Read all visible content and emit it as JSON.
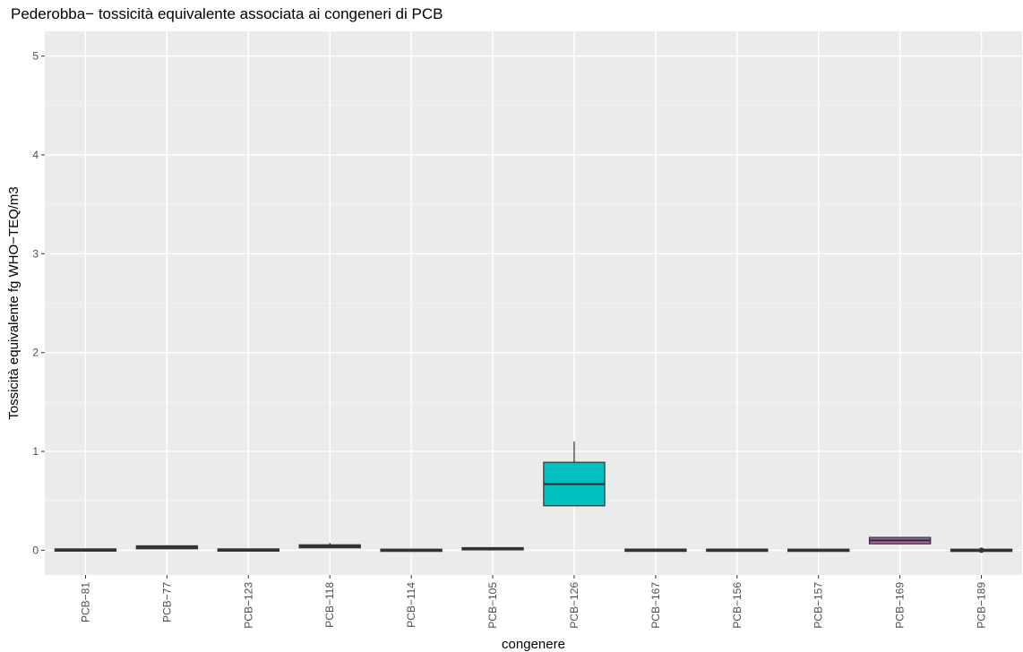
{
  "chart_data": {
    "type": "boxplot",
    "title": "Pederobba− tossicità equivalente associata ai congeneri di PCB",
    "xlabel": "congenere",
    "ylabel": "Tossicità equivalente fg WHO−TEQ/m3",
    "ylim": [
      -0.25,
      5.25
    ],
    "y_ticks": [
      0,
      1,
      2,
      3,
      4,
      5
    ],
    "grid": true,
    "colors": {
      "panel_background": "#ebebeb",
      "grid_major": "#ffffff",
      "grid_minor": "#f5f5f5",
      "box_outline": "#333333",
      "default_fill": "#333333",
      "PCB−126": "#00c0c0",
      "PCB−169": "#b05fb0"
    },
    "categories": [
      "PCB−81",
      "PCB−77",
      "PCB−123",
      "PCB−118",
      "PCB−114",
      "PCB−105",
      "PCB−126",
      "PCB−167",
      "PCB−156",
      "PCB−157",
      "PCB−169",
      "PCB−189"
    ],
    "boxes": [
      {
        "category": "PCB−81",
        "min": 0.0,
        "q1": 0.0,
        "median": 0.003,
        "q3": 0.005,
        "max": 0.006,
        "outliers": []
      },
      {
        "category": "PCB−77",
        "min": 0.01,
        "q1": 0.015,
        "median": 0.03,
        "q3": 0.045,
        "max": 0.05,
        "outliers": []
      },
      {
        "category": "PCB−123",
        "min": 0.0,
        "q1": 0.0,
        "median": 0.003,
        "q3": 0.005,
        "max": 0.006,
        "outliers": []
      },
      {
        "category": "PCB−118",
        "min": 0.02,
        "q1": 0.025,
        "median": 0.04,
        "q3": 0.055,
        "max": 0.075,
        "outliers": []
      },
      {
        "category": "PCB−114",
        "min": -0.002,
        "q1": -0.002,
        "median": 0.0,
        "q3": 0.002,
        "max": 0.003,
        "outliers": []
      },
      {
        "category": "PCB−105",
        "min": 0.008,
        "q1": 0.01,
        "median": 0.015,
        "q3": 0.02,
        "max": 0.025,
        "outliers": []
      },
      {
        "category": "PCB−126",
        "min": 0.45,
        "q1": 0.45,
        "median": 0.67,
        "q3": 0.89,
        "max": 1.1,
        "outliers": []
      },
      {
        "category": "PCB−167",
        "min": -0.002,
        "q1": -0.001,
        "median": 0.0,
        "q3": 0.002,
        "max": 0.003,
        "outliers": []
      },
      {
        "category": "PCB−156",
        "min": -0.002,
        "q1": -0.001,
        "median": 0.0,
        "q3": 0.002,
        "max": 0.003,
        "outliers": []
      },
      {
        "category": "PCB−157",
        "min": -0.002,
        "q1": -0.002,
        "median": 0.0,
        "q3": 0.002,
        "max": 0.003,
        "outliers": []
      },
      {
        "category": "PCB−169",
        "min": 0.06,
        "q1": 0.065,
        "median": 0.1,
        "q3": 0.13,
        "max": 0.135,
        "outliers": []
      },
      {
        "category": "PCB−189",
        "min": -0.004,
        "q1": -0.003,
        "median": -0.001,
        "q3": 0.002,
        "max": 0.003,
        "outliers": [
          0.0
        ]
      }
    ]
  }
}
